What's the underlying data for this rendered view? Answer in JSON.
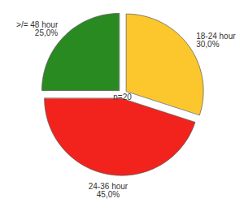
{
  "chart_data": {
    "type": "pie",
    "categories": [
      "18-24 hour",
      "24-36 hour",
      ">/= 48 hour"
    ],
    "values": [
      30,
      45,
      25
    ],
    "value_labels": [
      "30,0%",
      "45,0%",
      "25,0%"
    ],
    "colors": [
      "#fcc72c",
      "#f2231d",
      "#2a8a22"
    ],
    "data_labels": true,
    "annotation": "n=20"
  }
}
